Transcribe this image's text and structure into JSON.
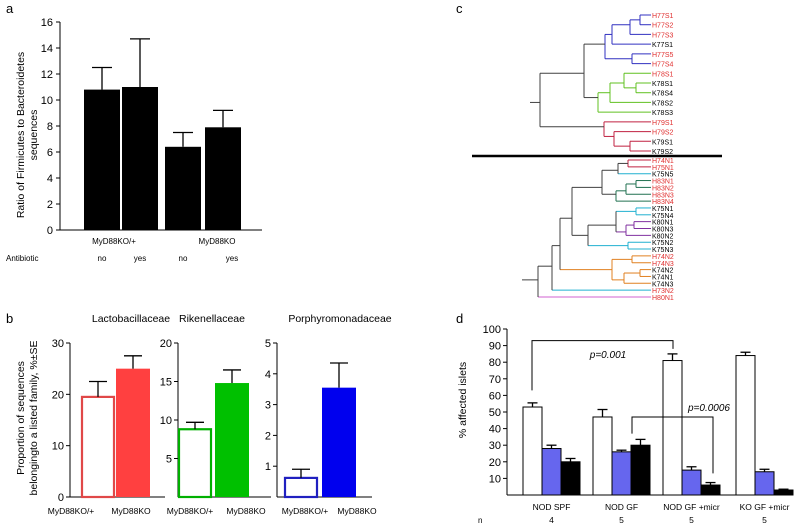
{
  "panel_labels": {
    "a": "a",
    "b": "b",
    "c": "c",
    "d": "d"
  },
  "panel_a": {
    "ylabel_line1": "Ratio of Firmicutes to Bacteroidetes",
    "ylabel_line2": "sequences",
    "group_labels": [
      "MyD88KO/+",
      "MyD88KO"
    ],
    "antibiotic_label": "Antibiotic",
    "antibiotic_values": [
      "no",
      "yes",
      "no",
      "yes"
    ]
  },
  "panel_b": {
    "ylabel_line1": "Proportion of sequences",
    "ylabel_line2": "belongingto a listed family, %±SE",
    "x_labels": [
      "MyD88KO/+",
      "MyD88KO"
    ],
    "titles": [
      "Lactobacillaceae",
      "Rikenellaceae",
      "Porphyromonadaceae"
    ]
  },
  "panel_c": {
    "top_leaves": [
      {
        "name": "H77S1",
        "color": "#e03030"
      },
      {
        "name": "H77S2",
        "color": "#e03030"
      },
      {
        "name": "H77S3",
        "color": "#e03030"
      },
      {
        "name": "K77S1",
        "color": "#000000"
      },
      {
        "name": "H77S5",
        "color": "#e03030"
      },
      {
        "name": "H77S4",
        "color": "#e03030"
      },
      {
        "name": "H78S1",
        "color": "#e03030"
      },
      {
        "name": "K78S1",
        "color": "#000000"
      },
      {
        "name": "K78S4",
        "color": "#000000"
      },
      {
        "name": "K78S2",
        "color": "#000000"
      },
      {
        "name": "K78S3",
        "color": "#000000"
      },
      {
        "name": "H79S1",
        "color": "#e03030"
      },
      {
        "name": "H79S2",
        "color": "#e03030"
      },
      {
        "name": "K79S1",
        "color": "#000000"
      },
      {
        "name": "K79S2",
        "color": "#000000"
      }
    ],
    "bottom_leaves": [
      {
        "name": "H74N1",
        "color": "#e03030"
      },
      {
        "name": "H75N1",
        "color": "#e03030"
      },
      {
        "name": "K75N5",
        "color": "#000000"
      },
      {
        "name": "H83N1",
        "color": "#e03030"
      },
      {
        "name": "H83N2",
        "color": "#e03030"
      },
      {
        "name": "H83N3",
        "color": "#e03030"
      },
      {
        "name": "H83N4",
        "color": "#e03030"
      },
      {
        "name": "K75N1",
        "color": "#000000"
      },
      {
        "name": "K75N4",
        "color": "#000000"
      },
      {
        "name": "K80N1",
        "color": "#000000"
      },
      {
        "name": "K80N3",
        "color": "#000000"
      },
      {
        "name": "K80N2",
        "color": "#000000"
      },
      {
        "name": "K75N2",
        "color": "#000000"
      },
      {
        "name": "K75N3",
        "color": "#000000"
      },
      {
        "name": "H74N2",
        "color": "#e03030"
      },
      {
        "name": "H74N3",
        "color": "#e03030"
      },
      {
        "name": "K74N2",
        "color": "#000000"
      },
      {
        "name": "K74N1",
        "color": "#000000"
      },
      {
        "name": "K74N3",
        "color": "#000000"
      },
      {
        "name": "H73N2",
        "color": "#e03030"
      },
      {
        "name": "H80N1",
        "color": "#e03030"
      }
    ]
  },
  "panel_d": {
    "ylabel": "% affected  islets",
    "groups": [
      "NOD SPF",
      "NOD GF",
      "NOD GF +micr",
      "KO GF +micr"
    ],
    "n_label": "n",
    "n_values": [
      "4",
      "5",
      "5",
      "5"
    ],
    "p1": "p=0.001",
    "p2": "p=0.0006"
  },
  "chart_data": [
    {
      "type": "bar",
      "panel": "a",
      "categories": [
        "MyD88KO/+ no",
        "MyD88KO/+ yes",
        "MyD88KO no",
        "MyD88KO yes"
      ],
      "values": [
        10.8,
        11.0,
        6.4,
        7.9
      ],
      "errors": [
        1.7,
        3.7,
        1.1,
        1.3
      ],
      "ylim": [
        0,
        16
      ],
      "yticks": [
        0,
        2,
        4,
        6,
        8,
        10,
        12,
        14,
        16
      ],
      "ylabel": "Ratio of Firmicutes to Bacteroidetes sequences",
      "color": "#000000"
    },
    {
      "type": "bar",
      "panel": "b",
      "title": "Lactobacillaceae",
      "categories": [
        "MyD88KO/+",
        "MyD88KO"
      ],
      "values": [
        19.5,
        25.0
      ],
      "errors": [
        3.0,
        2.5
      ],
      "ylim": [
        0,
        30
      ],
      "yticks": [
        0,
        10,
        20,
        30
      ],
      "colors": [
        "#e04848",
        "#ff4040"
      ],
      "filled": [
        false,
        true
      ]
    },
    {
      "type": "bar",
      "panel": "b",
      "title": "Rikenellaceae",
      "categories": [
        "MyD88KO/+",
        "MyD88KO"
      ],
      "values": [
        8.8,
        14.8
      ],
      "errors": [
        0.9,
        1.7
      ],
      "ylim": [
        0,
        20
      ],
      "yticks": [
        5,
        10,
        15,
        20
      ],
      "colors": [
        "#00b000",
        "#00c000"
      ],
      "filled": [
        false,
        true
      ]
    },
    {
      "type": "bar",
      "panel": "b",
      "title": "Porphyromonadaceae",
      "categories": [
        "MyD88KO/+",
        "MyD88KO"
      ],
      "values": [
        0.62,
        3.55
      ],
      "errors": [
        0.28,
        0.8
      ],
      "ylim": [
        0,
        5
      ],
      "yticks": [
        1,
        2,
        3,
        4,
        5
      ],
      "colors": [
        "#2020c0",
        "#0000ee"
      ],
      "filled": [
        false,
        true
      ]
    },
    {
      "type": "bar",
      "panel": "d",
      "categories": [
        "NOD SPF",
        "NOD GF",
        "NOD GF +micr",
        "KO GF +micr"
      ],
      "series": [
        {
          "name": "white",
          "color": "#ffffff",
          "values": [
            53,
            47,
            81,
            84
          ],
          "errors": [
            2.5,
            4.5,
            4,
            2
          ]
        },
        {
          "name": "blue",
          "color": "#6666ee",
          "values": [
            28,
            26,
            15,
            14
          ],
          "errors": [
            2,
            1,
            2,
            1.5
          ]
        },
        {
          "name": "black",
          "color": "#000000",
          "values": [
            20,
            30,
            6,
            3
          ],
          "errors": [
            2,
            3.5,
            1.5,
            0.5
          ]
        }
      ],
      "ylim": [
        0,
        100
      ],
      "yticks": [
        10,
        20,
        30,
        40,
        50,
        60,
        70,
        80,
        90,
        100
      ],
      "ylabel": "% affected  islets"
    }
  ]
}
